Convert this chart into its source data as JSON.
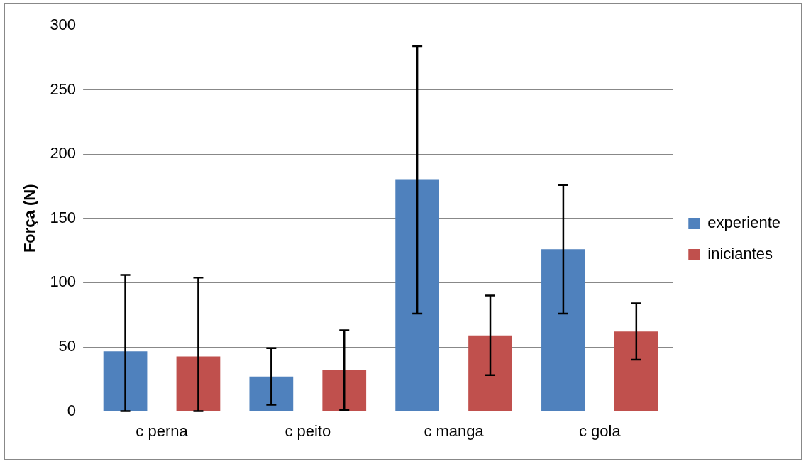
{
  "chart_data": {
    "type": "bar",
    "ylabel": "Força (N)",
    "categories": [
      "c perna",
      "c peito",
      "c manga",
      "c gola"
    ],
    "series": [
      {
        "name": "experiente",
        "color": "#4f81bd",
        "values": [
          46.5,
          27,
          180,
          126
        ],
        "errors": [
          [
            0,
            106
          ],
          22,
          104,
          50
        ]
      },
      {
        "name": "iniciantes",
        "color": "#c0504d",
        "values": [
          42.5,
          32,
          59,
          62
        ],
        "errors": [
          [
            0,
            104
          ],
          31,
          31,
          22
        ]
      }
    ],
    "ylim": [
      0,
      300
    ],
    "yticks": [
      0,
      50,
      100,
      150,
      200,
      250,
      300
    ],
    "grid": "y",
    "legend": "right"
  }
}
